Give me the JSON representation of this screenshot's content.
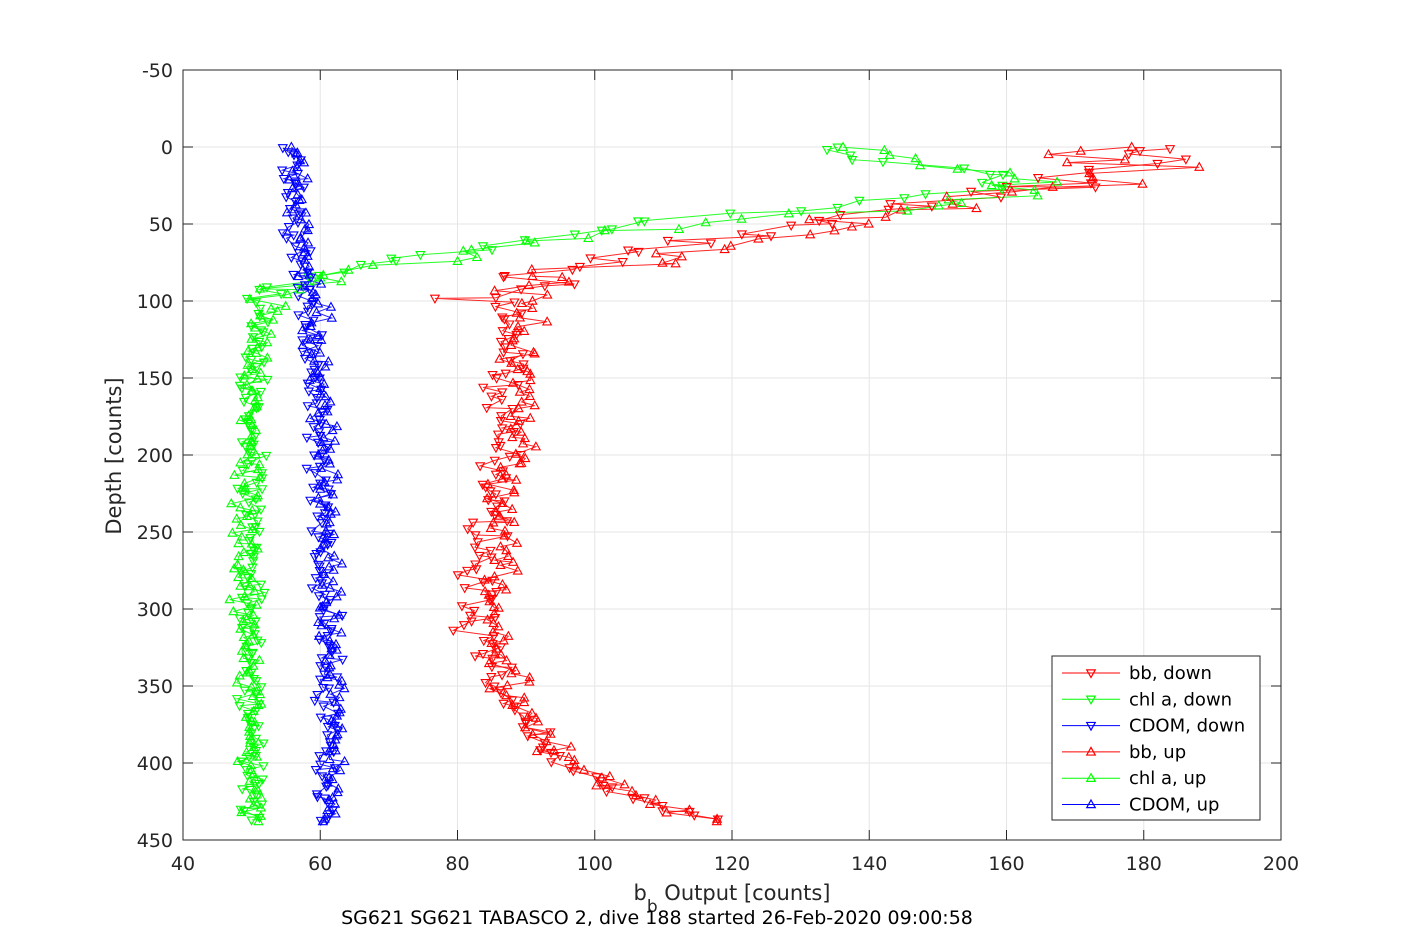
{
  "chart_data": {
    "type": "scatter",
    "xlabel_main": "b",
    "xlabel_sub": "b",
    "xlabel_rest": " Output [counts]",
    "ylabel": "Depth [counts]",
    "caption": "SG621 SG621 TABASCO 2, dive 188 started 26-Feb-2020 09:00:58",
    "xlim": [
      40,
      200
    ],
    "ylim": [
      -50,
      450
    ],
    "y_reversed": true,
    "grid": true,
    "x_ticks": [
      "40",
      "60",
      "80",
      "100",
      "120",
      "140",
      "160",
      "180",
      "200"
    ],
    "y_ticks": [
      "-50",
      "0",
      "50",
      "100",
      "150",
      "200",
      "250",
      "300",
      "350",
      "400",
      "450"
    ],
    "legend_position": "bottom-right",
    "series": [
      {
        "name": "bb, down",
        "marker": "triangle-down",
        "color": "#ff0000",
        "profile": [
          [
            0,
            175
          ],
          [
            5,
            185
          ],
          [
            10,
            180
          ],
          [
            20,
            170
          ],
          [
            30,
            160
          ],
          [
            40,
            145
          ],
          [
            50,
            128
          ],
          [
            60,
            120
          ],
          [
            70,
            108
          ],
          [
            80,
            95
          ],
          [
            90,
            89
          ],
          [
            100,
            88
          ],
          [
            120,
            88
          ],
          [
            150,
            87
          ],
          [
            180,
            87
          ],
          [
            200,
            86
          ],
          [
            250,
            84
          ],
          [
            300,
            83
          ],
          [
            330,
            84
          ],
          [
            350,
            86
          ],
          [
            370,
            89
          ],
          [
            400,
            94
          ],
          [
            420,
            105
          ],
          [
            440,
            118
          ]
        ]
      },
      {
        "name": "chl a, down",
        "marker": "triangle-down",
        "color": "#00ff00",
        "profile": [
          [
            0,
            128
          ],
          [
            5,
            135
          ],
          [
            15,
            155
          ],
          [
            25,
            160
          ],
          [
            40,
            130
          ],
          [
            50,
            105
          ],
          [
            60,
            90
          ],
          [
            70,
            72
          ],
          [
            80,
            62
          ],
          [
            90,
            55
          ],
          [
            100,
            52
          ],
          [
            120,
            51
          ],
          [
            150,
            50
          ],
          [
            200,
            50
          ],
          [
            250,
            50
          ],
          [
            300,
            50
          ],
          [
            350,
            50
          ],
          [
            400,
            50
          ],
          [
            440,
            50
          ]
        ]
      },
      {
        "name": "CDOM, down",
        "marker": "triangle-down",
        "color": "#0000ff",
        "profile": [
          [
            0,
            56
          ],
          [
            50,
            56
          ],
          [
            100,
            58
          ],
          [
            150,
            59
          ],
          [
            200,
            60
          ],
          [
            250,
            60
          ],
          [
            300,
            61
          ],
          [
            350,
            61
          ],
          [
            400,
            61
          ],
          [
            440,
            61
          ]
        ]
      },
      {
        "name": "bb, up",
        "marker": "triangle-up",
        "color": "#ff0000",
        "profile": [
          [
            0,
            178
          ],
          [
            10,
            182
          ],
          [
            20,
            172
          ],
          [
            30,
            158
          ],
          [
            45,
            140
          ],
          [
            55,
            128
          ],
          [
            65,
            118
          ],
          [
            75,
            108
          ],
          [
            85,
            95
          ],
          [
            100,
            90
          ],
          [
            120,
            90
          ],
          [
            150,
            89
          ],
          [
            200,
            88
          ],
          [
            250,
            86
          ],
          [
            300,
            85
          ],
          [
            330,
            86
          ],
          [
            350,
            88
          ],
          [
            370,
            91
          ],
          [
            400,
            96
          ],
          [
            420,
            106
          ],
          [
            440,
            118
          ]
        ]
      },
      {
        "name": "chl a, up",
        "marker": "triangle-up",
        "color": "#00ff00",
        "profile": [
          [
            0,
            140
          ],
          [
            10,
            150
          ],
          [
            20,
            162
          ],
          [
            30,
            168
          ],
          [
            40,
            145
          ],
          [
            50,
            115
          ],
          [
            60,
            95
          ],
          [
            70,
            80
          ],
          [
            80,
            65
          ],
          [
            90,
            58
          ],
          [
            100,
            54
          ],
          [
            120,
            52
          ],
          [
            150,
            50
          ],
          [
            200,
            50
          ],
          [
            250,
            49
          ],
          [
            300,
            49
          ],
          [
            350,
            50
          ],
          [
            400,
            50
          ],
          [
            440,
            50
          ]
        ]
      },
      {
        "name": "CDOM, up",
        "marker": "triangle-up",
        "color": "#0000ff",
        "profile": [
          [
            0,
            57
          ],
          [
            50,
            57
          ],
          [
            100,
            59
          ],
          [
            150,
            60
          ],
          [
            200,
            61
          ],
          [
            250,
            61
          ],
          [
            300,
            61
          ],
          [
            350,
            62
          ],
          [
            400,
            62
          ],
          [
            440,
            62
          ]
        ]
      }
    ]
  }
}
